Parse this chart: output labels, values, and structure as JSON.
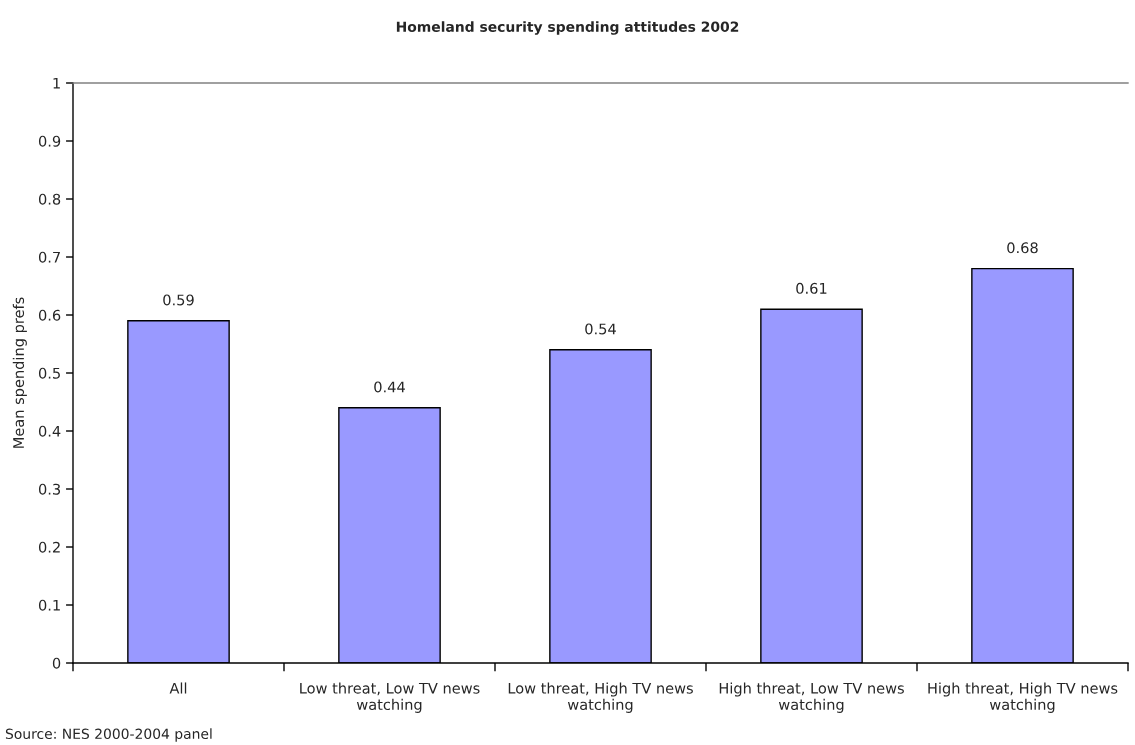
{
  "chart_data": {
    "type": "bar",
    "title": "Homeland security spending attitudes 2002",
    "ylabel": "Mean spending prefs",
    "categories": [
      "All",
      "Low threat, Low TV news watching",
      "Low threat, High TV news watching",
      "High threat, Low TV news watching",
      "High threat, High TV news watching"
    ],
    "values": [
      0.59,
      0.44,
      0.54,
      0.61,
      0.68
    ],
    "color": "#9999ff",
    "ylim": [
      0,
      1
    ],
    "yticks": [
      0,
      0.1,
      0.2,
      0.3,
      0.4,
      0.5,
      0.6,
      0.7,
      0.8,
      0.9,
      1
    ],
    "data_labels": true,
    "grid": false,
    "annotations": [
      "Source: NES 2000-2004 panel"
    ]
  }
}
